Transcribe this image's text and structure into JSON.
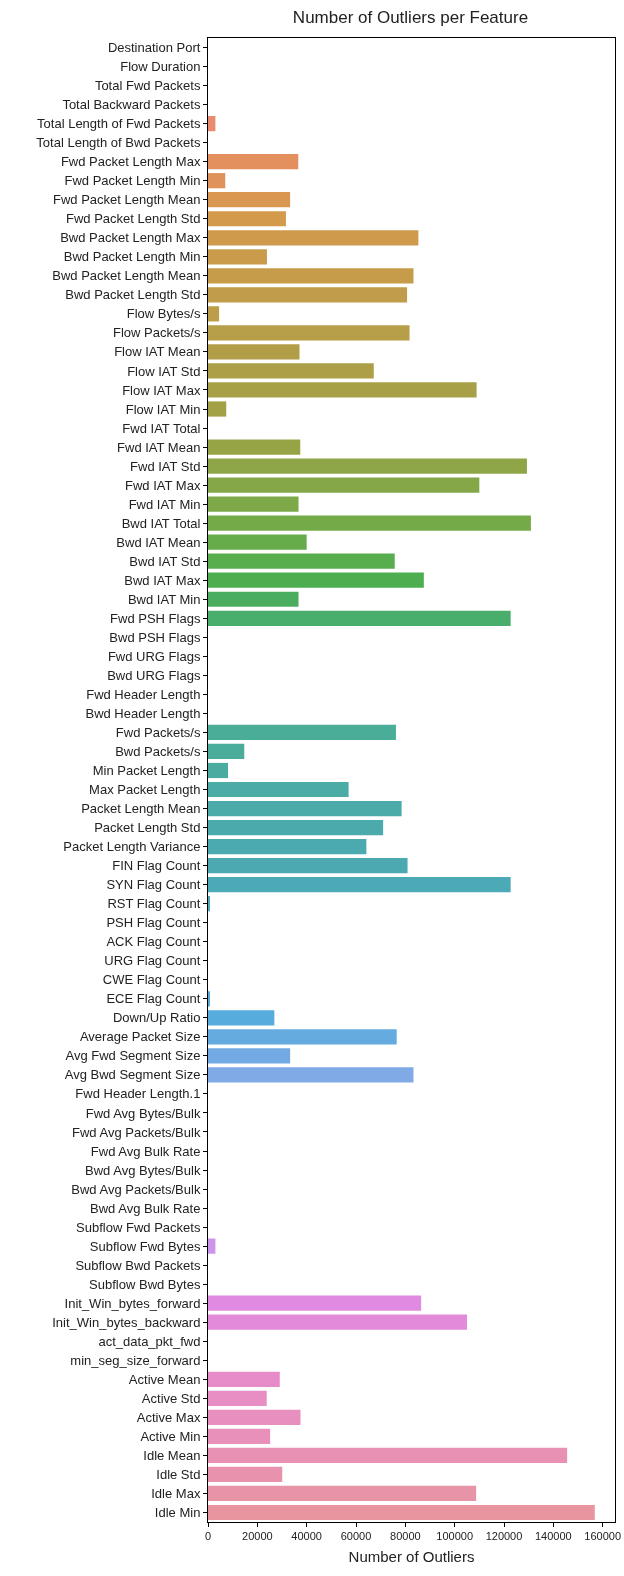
{
  "chart_data": {
    "type": "bar",
    "orientation": "horizontal",
    "title": "Number of Outliers per Feature",
    "xlabel": "Number of Outliers",
    "categories": [
      "Destination Port",
      "Flow Duration",
      "Total Fwd Packets",
      "Total Backward Packets",
      "Total Length of Fwd Packets",
      "Total Length of Bwd Packets",
      "Fwd Packet Length Max",
      "Fwd Packet Length Min",
      "Fwd Packet Length Mean",
      "Fwd Packet Length Std",
      "Bwd Packet Length Max",
      "Bwd Packet Length Min",
      "Bwd Packet Length Mean",
      "Bwd Packet Length Std",
      "Flow Bytes/s",
      "Flow Packets/s",
      "Flow IAT Mean",
      "Flow IAT Std",
      "Flow IAT Max",
      "Flow IAT Min",
      "Fwd IAT Total",
      "Fwd IAT Mean",
      "Fwd IAT Std",
      "Fwd IAT Max",
      "Fwd IAT Min",
      "Bwd IAT Total",
      "Bwd IAT Mean",
      "Bwd IAT Std",
      "Bwd IAT Max",
      "Bwd IAT Min",
      "Fwd PSH Flags",
      "Bwd PSH Flags",
      "Fwd URG Flags",
      "Bwd URG Flags",
      "Fwd Header Length",
      "Bwd Header Length",
      "Fwd Packets/s",
      "Bwd Packets/s",
      "Min Packet Length",
      "Max Packet Length",
      "Packet Length Mean",
      "Packet Length Std",
      "Packet Length Variance",
      "FIN Flag Count",
      "SYN Flag Count",
      "RST Flag Count",
      "PSH Flag Count",
      "ACK Flag Count",
      "URG Flag Count",
      "CWE Flag Count",
      "ECE Flag Count",
      "Down/Up Ratio",
      "Average Packet Size",
      "Avg Fwd Segment Size",
      "Avg Bwd Segment Size",
      "Fwd Header Length.1",
      "Fwd Avg Bytes/Bulk",
      "Fwd Avg Packets/Bulk",
      "Fwd Avg Bulk Rate",
      "Bwd Avg Bytes/Bulk",
      "Bwd Avg Packets/Bulk",
      "Bwd Avg Bulk Rate",
      "Subflow Fwd Packets",
      "Subflow Fwd Bytes",
      "Subflow Bwd Packets",
      "Subflow Bwd Bytes",
      "Init_Win_bytes_forward",
      "Init_Win_bytes_backward",
      "act_data_pkt_fwd",
      "min_seg_size_forward",
      "Active Mean",
      "Active Std",
      "Active Max",
      "Active Min",
      "Idle Mean",
      "Idle Std",
      "Idle Max",
      "Idle Min"
    ],
    "values": [
      0,
      0,
      0,
      0,
      3000,
      0,
      36600,
      7000,
      33300,
      31600,
      85300,
      23900,
      83300,
      80700,
      4500,
      81700,
      37100,
      67200,
      108900,
      7400,
      0,
      37400,
      129300,
      110000,
      36700,
      130900,
      40000,
      75700,
      87500,
      36700,
      122700,
      0,
      0,
      0,
      0,
      0,
      76200,
      14700,
      8100,
      57000,
      78500,
      71000,
      64200,
      80900,
      122700,
      600,
      0,
      0,
      0,
      0,
      600,
      26900,
      76500,
      33300,
      83300,
      0,
      0,
      0,
      0,
      0,
      0,
      0,
      0,
      3000,
      0,
      0,
      86400,
      105000,
      0,
      0,
      29100,
      23800,
      37500,
      25200,
      145600,
      30100,
      108700,
      156800
    ],
    "colors": [
      "#ee8383",
      "#ed8580",
      "#ec877a",
      "#eb8975",
      "#e98b6f",
      "#e78e66",
      "#e4905e",
      "#df935a",
      "#da9752",
      "#d49a4c",
      "#cf9a4b",
      "#ca9b4b",
      "#c69b4a",
      "#c19c4a",
      "#bc9d49",
      "#b79e48",
      "#b29e48",
      "#ad9f47",
      "#a8a047",
      "#a2a146",
      "#9da346",
      "#97a446",
      "#8ea647",
      "#86a747",
      "#7da948",
      "#75aa48",
      "#66ac4b",
      "#58ad4d",
      "#4cae4f",
      "#4aae5e",
      "#49ae6c",
      "#49ae7a",
      "#49ae80",
      "#49ae86",
      "#4aad8c",
      "#4aad92",
      "#4aad98",
      "#4aad9c",
      "#4aaca0",
      "#4aaca4",
      "#4aaba8",
      "#4baaab",
      "#4baaaf",
      "#4ca9b2",
      "#4ca9b6",
      "#4ea9bc",
      "#4fa9c1",
      "#51a9c7",
      "#52a9cc",
      "#53aad2",
      "#55abd7",
      "#56acdd",
      "#65abe0",
      "#73aae3",
      "#80aae6",
      "#8caae8",
      "#96a7ea",
      "#a0a4eb",
      "#a9a1ed",
      "#b19fed",
      "#b89ced",
      "#bf9aec",
      "#c697ec",
      "#cd94eb",
      "#d590e9",
      "#dc8de8",
      "#e08be1",
      "#e48ada",
      "#e58bd4",
      "#e68bcf",
      "#e78cc9",
      "#e78ec4",
      "#e78fbe",
      "#e890b9",
      "#e891b5",
      "#e892ae",
      "#e894a7",
      "#e895a0"
    ],
    "xlim": [
      0,
      165000
    ],
    "xticks": [
      0,
      20000,
      40000,
      60000,
      80000,
      100000,
      120000,
      140000,
      160000
    ],
    "grid": false
  }
}
